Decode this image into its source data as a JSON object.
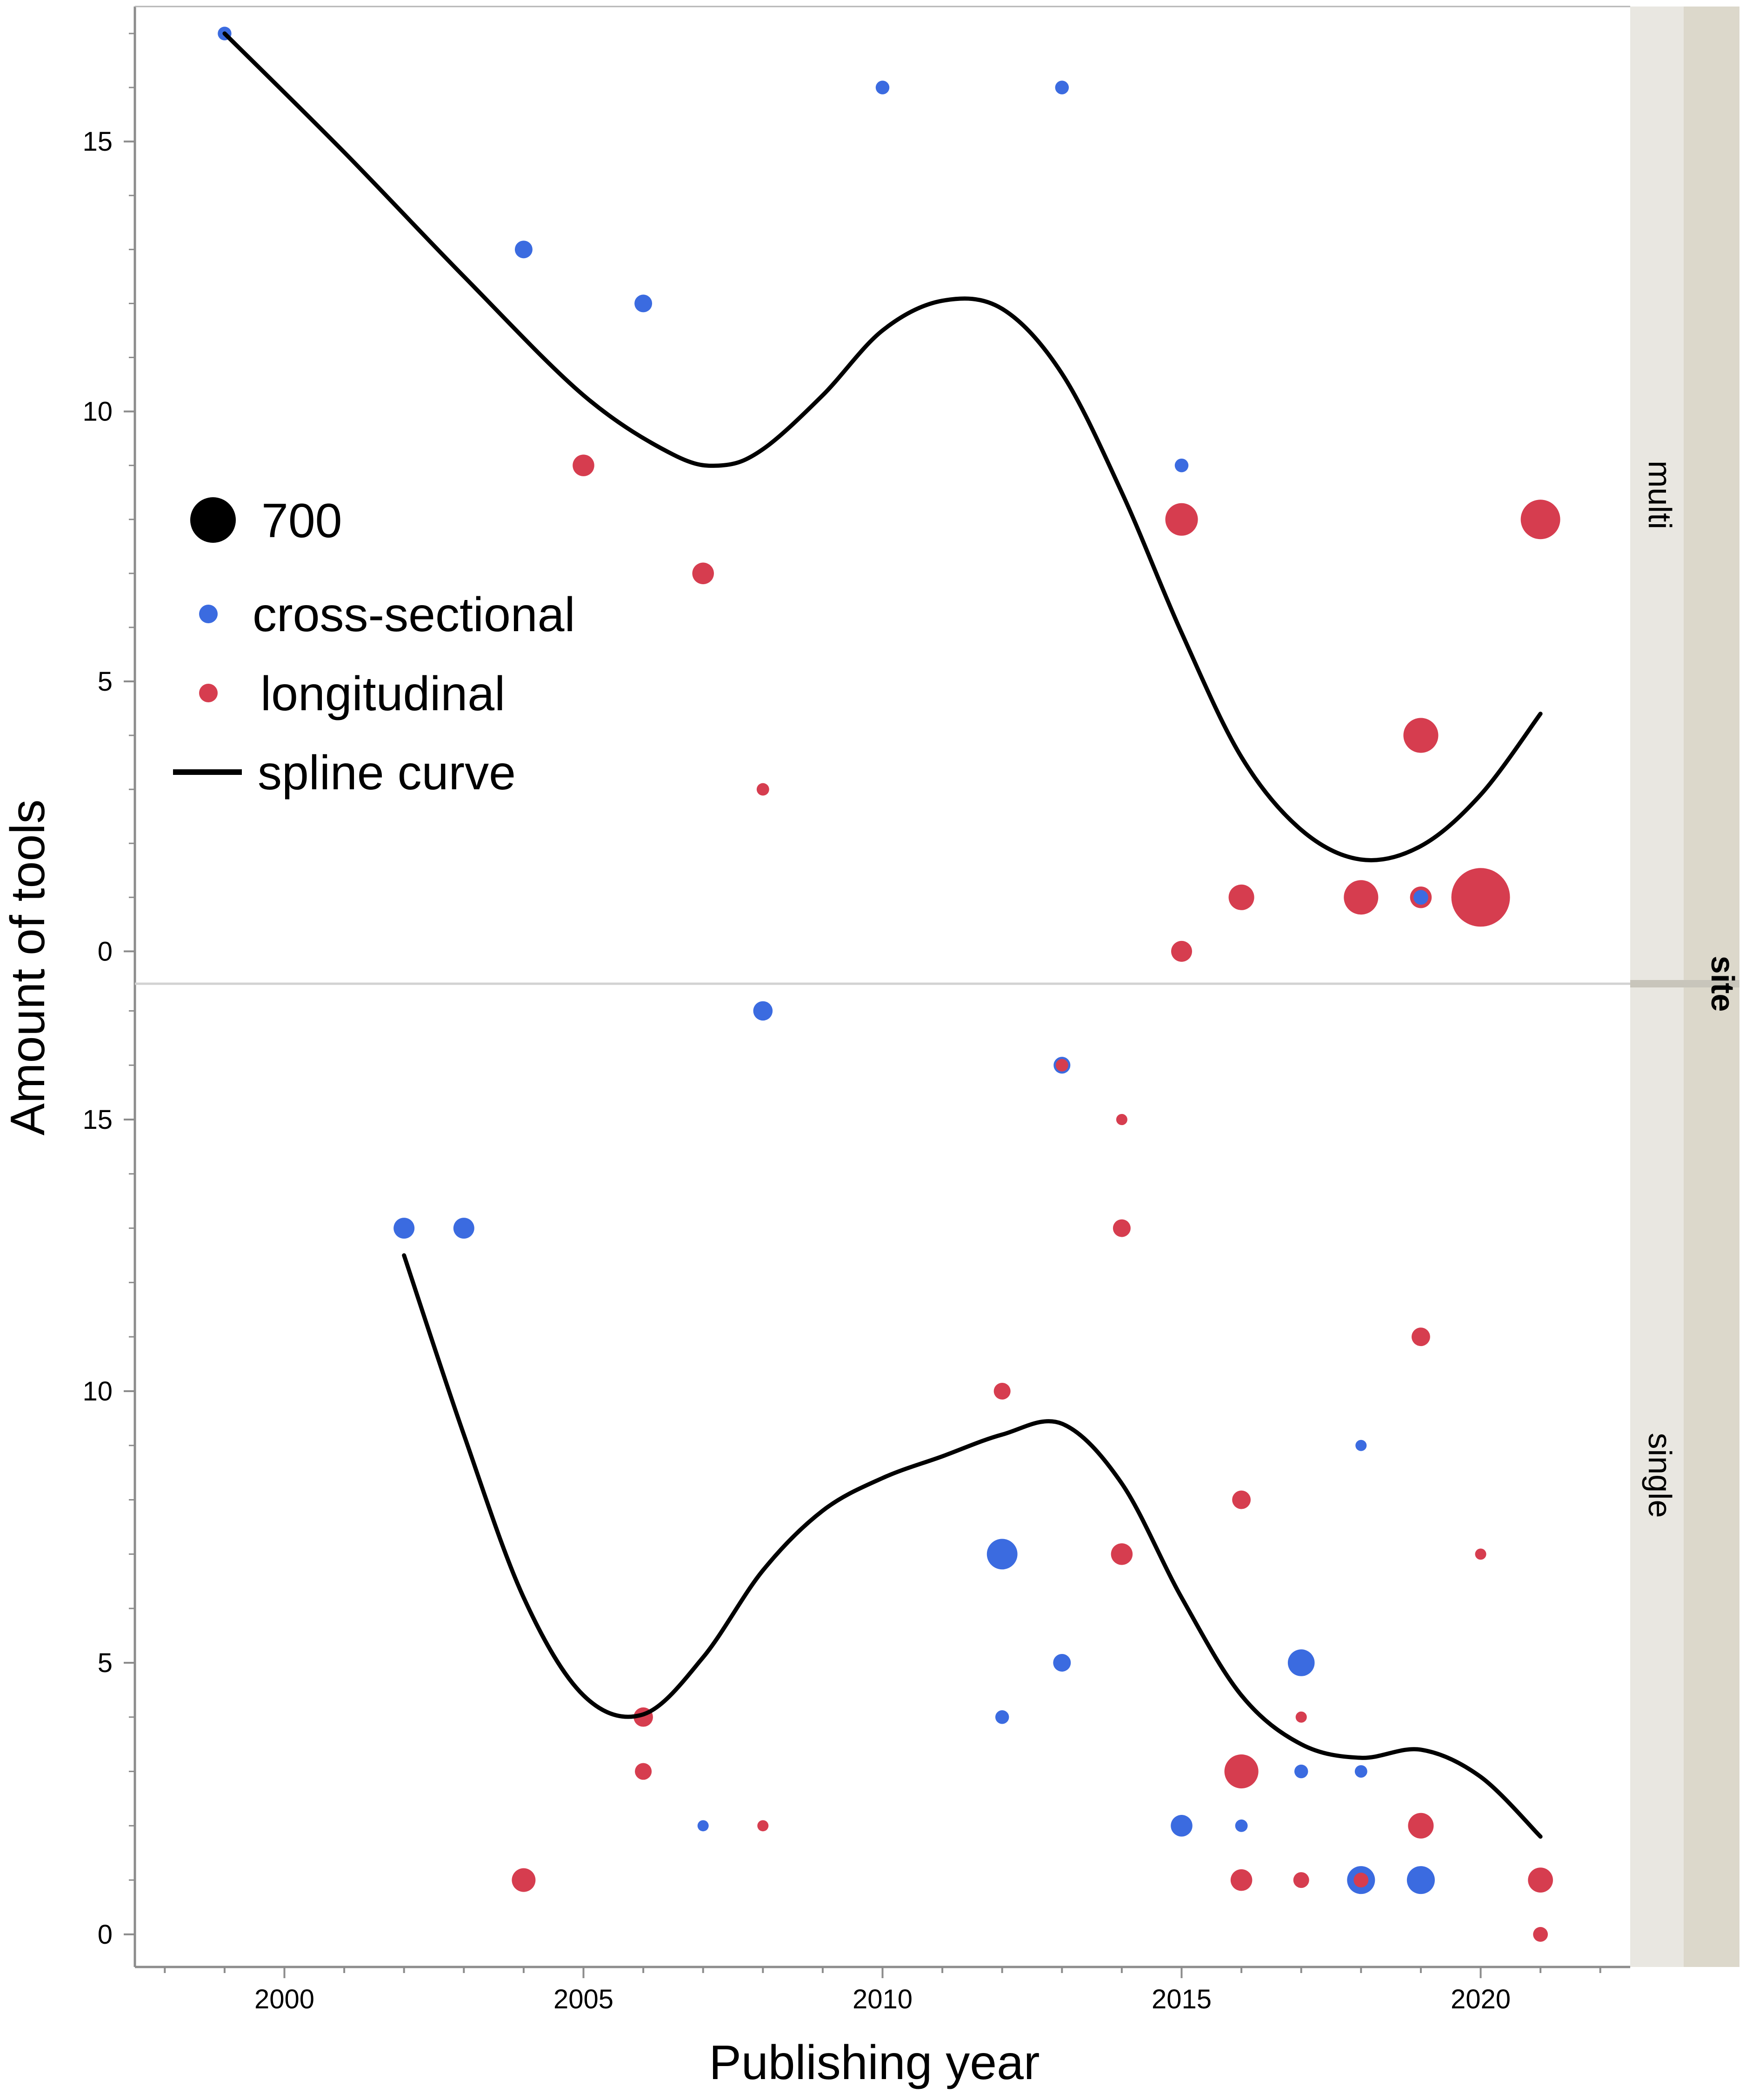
{
  "chart_data": {
    "type": "scatter",
    "xlabel": "Publishing year",
    "ylabel": "Amount of tools",
    "facet_title": "site",
    "xlim": [
      1997.5,
      2022.5
    ],
    "x_ticks": [
      2000,
      2005,
      2010,
      2015,
      2020
    ],
    "y_ticks": [
      0,
      5,
      10,
      15
    ],
    "colors": {
      "cross-sectional": "#3b6be0",
      "longitudinal": "#d63d4f",
      "spline": "#000000"
    },
    "legend": {
      "size_label": "700",
      "size_value": 700,
      "entries": [
        {
          "name": "cross-sectional",
          "kind": "marker"
        },
        {
          "name": "longitudinal",
          "kind": "marker"
        },
        {
          "name": "spline curve",
          "kind": "line"
        }
      ]
    },
    "panels": [
      {
        "name": "multi",
        "ylim": [
          -0.6,
          17.5
        ],
        "points": [
          {
            "x": 1999,
            "y": 17,
            "design": "cross-sectional",
            "size": 60
          },
          {
            "x": 2004,
            "y": 13,
            "design": "cross-sectional",
            "size": 100
          },
          {
            "x": 2006,
            "y": 12,
            "design": "cross-sectional",
            "size": 100
          },
          {
            "x": 2010,
            "y": 16,
            "design": "cross-sectional",
            "size": 60
          },
          {
            "x": 2013,
            "y": 16,
            "design": "cross-sectional",
            "size": 60
          },
          {
            "x": 2015,
            "y": 9,
            "design": "cross-sectional",
            "size": 60
          },
          {
            "x": 2005,
            "y": 9,
            "design": "longitudinal",
            "size": 150
          },
          {
            "x": 2007,
            "y": 7,
            "design": "longitudinal",
            "size": 150
          },
          {
            "x": 2008,
            "y": 3,
            "design": "longitudinal",
            "size": 50
          },
          {
            "x": 2015,
            "y": 8,
            "design": "longitudinal",
            "size": 340
          },
          {
            "x": 2015,
            "y": 0,
            "design": "longitudinal",
            "size": 140
          },
          {
            "x": 2016,
            "y": 1,
            "design": "longitudinal",
            "size": 210
          },
          {
            "x": 2018,
            "y": 1,
            "design": "longitudinal",
            "size": 380
          },
          {
            "x": 2019,
            "y": 4,
            "design": "longitudinal",
            "size": 390
          },
          {
            "x": 2019,
            "y": 1,
            "design": "longitudinal",
            "size": 150
          },
          {
            "x": 2019,
            "y": 1,
            "design": "cross-sectional",
            "size": 70
          },
          {
            "x": 2020,
            "y": 1,
            "design": "longitudinal",
            "size": 1100
          },
          {
            "x": 2021,
            "y": 8,
            "design": "longitudinal",
            "size": 500
          }
        ],
        "spline": [
          [
            1999,
            17
          ],
          [
            2001,
            14.8
          ],
          [
            2003,
            12.5
          ],
          [
            2005,
            10.3
          ],
          [
            2006.5,
            9.2
          ],
          [
            2007.3,
            9.0
          ],
          [
            2008,
            9.3
          ],
          [
            2009,
            10.3
          ],
          [
            2010,
            11.5
          ],
          [
            2011,
            12.05
          ],
          [
            2012,
            11.9
          ],
          [
            2013,
            10.7
          ],
          [
            2014,
            8.5
          ],
          [
            2015,
            5.9
          ],
          [
            2016,
            3.6
          ],
          [
            2017,
            2.25
          ],
          [
            2018,
            1.7
          ],
          [
            2019,
            1.95
          ],
          [
            2020,
            2.9
          ],
          [
            2021,
            4.4
          ]
        ]
      },
      {
        "name": "single",
        "ylim": [
          -0.6,
          17.5
        ],
        "points": [
          {
            "x": 2002,
            "y": 13,
            "design": "cross-sectional",
            "size": 140
          },
          {
            "x": 2003,
            "y": 13,
            "design": "cross-sectional",
            "size": 140
          },
          {
            "x": 2008,
            "y": 17,
            "design": "cross-sectional",
            "size": 120
          },
          {
            "x": 2007,
            "y": 2,
            "design": "cross-sectional",
            "size": 40
          },
          {
            "x": 2012,
            "y": 7,
            "design": "cross-sectional",
            "size": 300
          },
          {
            "x": 2012,
            "y": 4,
            "design": "cross-sectional",
            "size": 60
          },
          {
            "x": 2013,
            "y": 16,
            "design": "cross-sectional",
            "size": 90
          },
          {
            "x": 2013,
            "y": 5,
            "design": "cross-sectional",
            "size": 100
          },
          {
            "x": 2015,
            "y": 2,
            "design": "cross-sectional",
            "size": 150
          },
          {
            "x": 2016,
            "y": 2,
            "design": "cross-sectional",
            "size": 50
          },
          {
            "x": 2017,
            "y": 5,
            "design": "cross-sectional",
            "size": 230
          },
          {
            "x": 2017,
            "y": 3,
            "design": "cross-sectional",
            "size": 60
          },
          {
            "x": 2018,
            "y": 9,
            "design": "cross-sectional",
            "size": 40
          },
          {
            "x": 2018,
            "y": 3,
            "design": "cross-sectional",
            "size": 50
          },
          {
            "x": 2018,
            "y": 1,
            "design": "cross-sectional",
            "size": 250
          },
          {
            "x": 2019,
            "y": 1,
            "design": "cross-sectional",
            "size": 250
          },
          {
            "x": 2004,
            "y": 1,
            "design": "longitudinal",
            "size": 180
          },
          {
            "x": 2006,
            "y": 4,
            "design": "longitudinal",
            "size": 120
          },
          {
            "x": 2006,
            "y": 3,
            "design": "longitudinal",
            "size": 90
          },
          {
            "x": 2008,
            "y": 2,
            "design": "longitudinal",
            "size": 40
          },
          {
            "x": 2012,
            "y": 10,
            "design": "longitudinal",
            "size": 90
          },
          {
            "x": 2013,
            "y": 16,
            "design": "longitudinal",
            "size": 50
          },
          {
            "x": 2014,
            "y": 15,
            "design": "longitudinal",
            "size": 40
          },
          {
            "x": 2014,
            "y": 13,
            "design": "longitudinal",
            "size": 100
          },
          {
            "x": 2014,
            "y": 7,
            "design": "longitudinal",
            "size": 150
          },
          {
            "x": 2016,
            "y": 8,
            "design": "longitudinal",
            "size": 110
          },
          {
            "x": 2016,
            "y": 3,
            "design": "longitudinal",
            "size": 370
          },
          {
            "x": 2016,
            "y": 1,
            "design": "longitudinal",
            "size": 150
          },
          {
            "x": 2017,
            "y": 4,
            "design": "longitudinal",
            "size": 40
          },
          {
            "x": 2017,
            "y": 1,
            "design": "longitudinal",
            "size": 80
          },
          {
            "x": 2018,
            "y": 1,
            "design": "longitudinal",
            "size": 70
          },
          {
            "x": 2019,
            "y": 11,
            "design": "longitudinal",
            "size": 110
          },
          {
            "x": 2019,
            "y": 2,
            "design": "longitudinal",
            "size": 210
          },
          {
            "x": 2020,
            "y": 7,
            "design": "longitudinal",
            "size": 40
          },
          {
            "x": 2021,
            "y": 1,
            "design": "longitudinal",
            "size": 200
          },
          {
            "x": 2021,
            "y": 0,
            "design": "longitudinal",
            "size": 70
          }
        ],
        "spline": [
          [
            2002,
            12.5
          ],
          [
            2003,
            9.2
          ],
          [
            2004,
            6.2
          ],
          [
            2005,
            4.4
          ],
          [
            2006,
            4.05
          ],
          [
            2007,
            5.1
          ],
          [
            2008,
            6.7
          ],
          [
            2009,
            7.8
          ],
          [
            2010,
            8.4
          ],
          [
            2011,
            8.8
          ],
          [
            2012,
            9.2
          ],
          [
            2013,
            9.4
          ],
          [
            2014,
            8.3
          ],
          [
            2015,
            6.2
          ],
          [
            2016,
            4.4
          ],
          [
            2017,
            3.5
          ],
          [
            2018,
            3.25
          ],
          [
            2019,
            3.4
          ],
          [
            2020,
            2.9
          ],
          [
            2021,
            1.8
          ]
        ]
      }
    ]
  }
}
